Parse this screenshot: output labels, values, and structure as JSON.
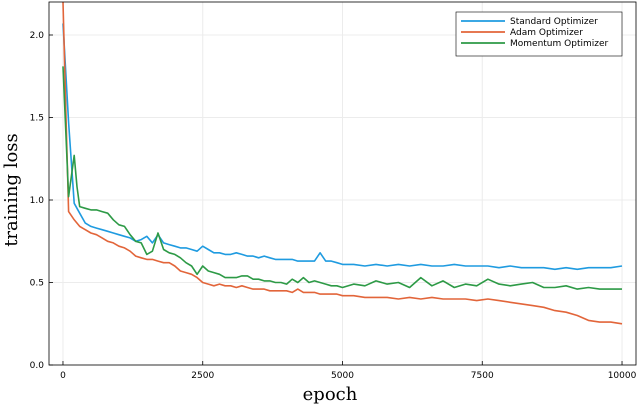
{
  "chart_data": {
    "type": "line",
    "xlabel": "epoch",
    "ylabel": "training loss",
    "xlim": [
      -250,
      10250
    ],
    "ylim": [
      0.0,
      2.2
    ],
    "x_ticks": [
      0,
      2500,
      5000,
      7500,
      10000
    ],
    "x_tick_labels": [
      "0",
      "2500",
      "5000",
      "7500",
      "10000"
    ],
    "y_ticks": [
      0.0,
      0.5,
      1.0,
      1.5,
      2.0
    ],
    "y_tick_labels": [
      "0.0",
      "0.5",
      "1.0",
      "1.5",
      "2.0"
    ],
    "grid": true,
    "legend_position": "top-right",
    "series": [
      {
        "name": "Standard Optimizer",
        "color": "#1f9be0",
        "x": [
          0,
          100,
          200,
          300,
          400,
          500,
          600,
          700,
          800,
          900,
          1000,
          1100,
          1200,
          1300,
          1400,
          1500,
          1600,
          1700,
          1800,
          1900,
          2000,
          2100,
          2200,
          2300,
          2400,
          2500,
          2600,
          2700,
          2800,
          2900,
          3000,
          3100,
          3200,
          3300,
          3400,
          3500,
          3600,
          3700,
          3800,
          3900,
          4000,
          4100,
          4200,
          4300,
          4400,
          4500,
          4600,
          4700,
          4800,
          4900,
          5000,
          5200,
          5400,
          5600,
          5800,
          6000,
          6200,
          6400,
          6600,
          6800,
          7000,
          7200,
          7400,
          7600,
          7800,
          8000,
          8200,
          8400,
          8600,
          8800,
          9000,
          9200,
          9400,
          9600,
          9800,
          10000
        ],
        "y": [
          2.07,
          1.47,
          0.98,
          0.92,
          0.86,
          0.84,
          0.83,
          0.82,
          0.81,
          0.8,
          0.79,
          0.78,
          0.77,
          0.75,
          0.76,
          0.78,
          0.74,
          0.79,
          0.74,
          0.73,
          0.72,
          0.71,
          0.71,
          0.7,
          0.69,
          0.72,
          0.7,
          0.68,
          0.68,
          0.67,
          0.67,
          0.68,
          0.67,
          0.66,
          0.66,
          0.65,
          0.66,
          0.65,
          0.64,
          0.64,
          0.64,
          0.64,
          0.63,
          0.63,
          0.63,
          0.63,
          0.68,
          0.63,
          0.63,
          0.62,
          0.61,
          0.61,
          0.6,
          0.61,
          0.6,
          0.61,
          0.6,
          0.61,
          0.6,
          0.6,
          0.61,
          0.6,
          0.6,
          0.6,
          0.59,
          0.6,
          0.59,
          0.59,
          0.59,
          0.58,
          0.59,
          0.58,
          0.59,
          0.59,
          0.59,
          0.6
        ]
      },
      {
        "name": "Adam Optimizer",
        "color": "#e2653a",
        "x": [
          0,
          50,
          100,
          200,
          300,
          400,
          500,
          600,
          700,
          800,
          900,
          1000,
          1100,
          1200,
          1300,
          1400,
          1500,
          1600,
          1700,
          1800,
          1900,
          2000,
          2100,
          2200,
          2300,
          2400,
          2500,
          2600,
          2700,
          2800,
          2900,
          3000,
          3100,
          3200,
          3300,
          3400,
          3500,
          3600,
          3700,
          3800,
          3900,
          4000,
          4100,
          4200,
          4300,
          4400,
          4500,
          4600,
          4700,
          4800,
          4900,
          5000,
          5200,
          5400,
          5600,
          5800,
          6000,
          6200,
          6400,
          6600,
          6800,
          7000,
          7200,
          7400,
          7600,
          7800,
          8000,
          8200,
          8400,
          8600,
          8800,
          9000,
          9200,
          9400,
          9600,
          9800,
          10000
        ],
        "y": [
          2.2,
          1.55,
          0.93,
          0.88,
          0.84,
          0.82,
          0.8,
          0.79,
          0.77,
          0.75,
          0.74,
          0.72,
          0.71,
          0.69,
          0.66,
          0.65,
          0.64,
          0.64,
          0.63,
          0.62,
          0.62,
          0.6,
          0.57,
          0.56,
          0.55,
          0.53,
          0.5,
          0.49,
          0.48,
          0.49,
          0.48,
          0.48,
          0.47,
          0.48,
          0.47,
          0.46,
          0.46,
          0.46,
          0.45,
          0.45,
          0.45,
          0.45,
          0.44,
          0.46,
          0.44,
          0.44,
          0.44,
          0.43,
          0.43,
          0.43,
          0.43,
          0.42,
          0.42,
          0.41,
          0.41,
          0.41,
          0.4,
          0.41,
          0.4,
          0.41,
          0.4,
          0.4,
          0.4,
          0.39,
          0.4,
          0.39,
          0.38,
          0.37,
          0.36,
          0.35,
          0.33,
          0.32,
          0.3,
          0.27,
          0.26,
          0.26,
          0.25
        ]
      },
      {
        "name": "Momentum Optimizer",
        "color": "#2d9a46",
        "x": [
          0,
          100,
          200,
          250,
          300,
          400,
          500,
          600,
          700,
          800,
          900,
          1000,
          1100,
          1200,
          1300,
          1400,
          1500,
          1600,
          1700,
          1800,
          1900,
          2000,
          2100,
          2200,
          2300,
          2400,
          2500,
          2600,
          2700,
          2800,
          2900,
          3000,
          3100,
          3200,
          3300,
          3400,
          3500,
          3600,
          3700,
          3800,
          3900,
          4000,
          4100,
          4200,
          4300,
          4400,
          4500,
          4600,
          4700,
          4800,
          4900,
          5000,
          5200,
          5400,
          5600,
          5800,
          6000,
          6200,
          6400,
          6600,
          6800,
          7000,
          7200,
          7400,
          7600,
          7800,
          8000,
          8200,
          8400,
          8600,
          8800,
          9000,
          9200,
          9400,
          9600,
          9800,
          10000
        ],
        "y": [
          1.81,
          1.02,
          1.27,
          1.08,
          0.96,
          0.95,
          0.94,
          0.94,
          0.93,
          0.92,
          0.88,
          0.85,
          0.84,
          0.79,
          0.75,
          0.74,
          0.67,
          0.69,
          0.8,
          0.7,
          0.68,
          0.67,
          0.65,
          0.62,
          0.6,
          0.55,
          0.6,
          0.57,
          0.56,
          0.55,
          0.53,
          0.53,
          0.53,
          0.54,
          0.54,
          0.52,
          0.52,
          0.51,
          0.51,
          0.5,
          0.5,
          0.49,
          0.52,
          0.5,
          0.53,
          0.5,
          0.51,
          0.5,
          0.49,
          0.48,
          0.48,
          0.47,
          0.49,
          0.48,
          0.51,
          0.49,
          0.5,
          0.47,
          0.53,
          0.48,
          0.51,
          0.47,
          0.49,
          0.48,
          0.52,
          0.49,
          0.48,
          0.49,
          0.5,
          0.47,
          0.47,
          0.48,
          0.46,
          0.47,
          0.46,
          0.46,
          0.46
        ]
      }
    ]
  }
}
